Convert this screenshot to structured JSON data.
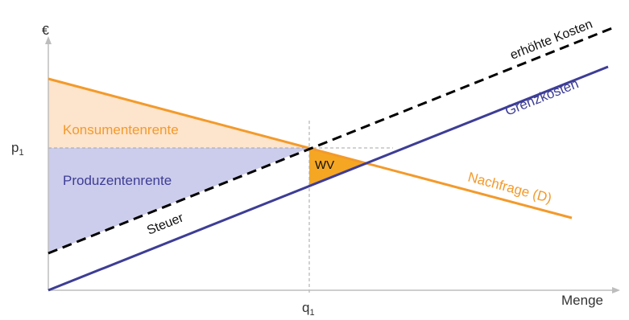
{
  "axes": {
    "y_label": "€",
    "x_label": "Menge",
    "p_tick": "p",
    "p_tick_sub": "1",
    "q_tick": "q",
    "q_tick_sub": "1"
  },
  "labels": {
    "consumer_surplus": "Konsumentenrente",
    "producer_surplus": "Produzentenrente",
    "deadweight_loss": "WV",
    "tax": "Steuer",
    "marginal_cost": "Grenzkosten",
    "raised_cost": "erhöhte Kosten",
    "demand": "Nachfrage (D)"
  },
  "colors": {
    "demand": "#f39a2b",
    "marginal_cost": "#3d3d96",
    "raised_cost": "#000000",
    "consumer_surplus_fill": "#fde4cc",
    "producer_surplus_fill": "#ccccec",
    "deadweight_fill": "#f5a623",
    "axis": "#bdbdbd",
    "guide": "#a6a6a6"
  }
}
